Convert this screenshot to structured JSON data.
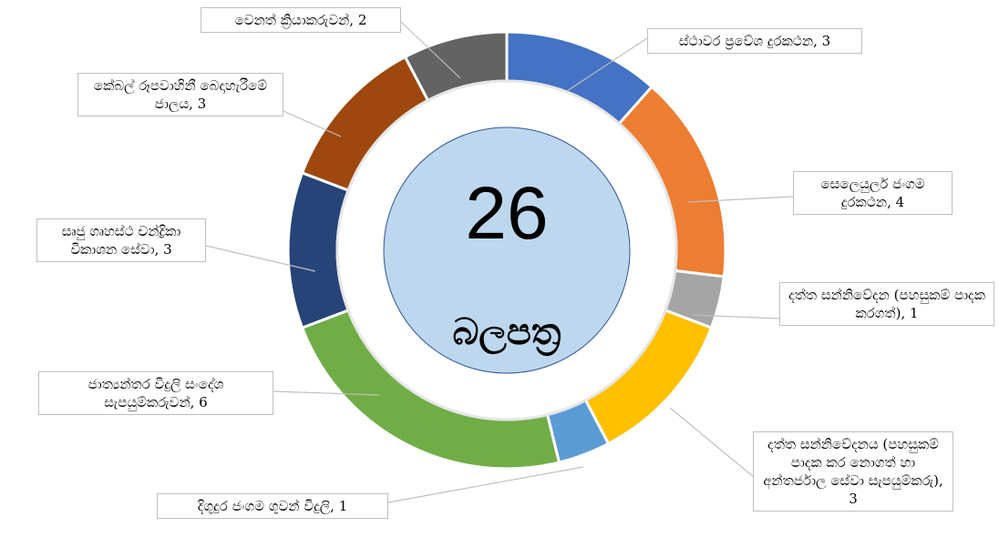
{
  "chart_data": {
    "type": "donut",
    "values": [
      3,
      4,
      1,
      3,
      1,
      6,
      3,
      3,
      2
    ],
    "value_labels": [
      "ස්ථාවර ප්‍රවේශ දුරකථන, 3",
      "සෙලෙයුලර් ජංගම දුරකථන, 4",
      "දත්ත සන්නිවේදන (පහසුකම් පාදක කරගත්), 1",
      "දත්ත සන්නිවේදනය (පහසුකම් පාදක කර නොගත් හා අන්තර්ජාල සේවා සැපයුම්කරු), 3",
      "දිගුදුර ජංගම ගුවන් විදුලි, 1",
      "ජාත්‍යන්තර විදුලි සංදේශ සැපයුම්කරුවන්, 6",
      "සෘජු ගෘහස්ථ චන්ද්‍රිකා විකාශන සේවා, 3",
      "කේබල් රූපවාහිනී බෙදාහැරීමේ ජාලය, 3",
      "වෙනත් ක්‍රියාකරුවන්, 2"
    ],
    "colors": [
      "#4472c4",
      "#ed7d31",
      "#a5a5a5",
      "#ffc000",
      "#5b9bd5",
      "#70ad47",
      "#264478",
      "#9e480e",
      "#636363"
    ],
    "center_value": 26,
    "center_label": "බලපත්‍ර"
  }
}
